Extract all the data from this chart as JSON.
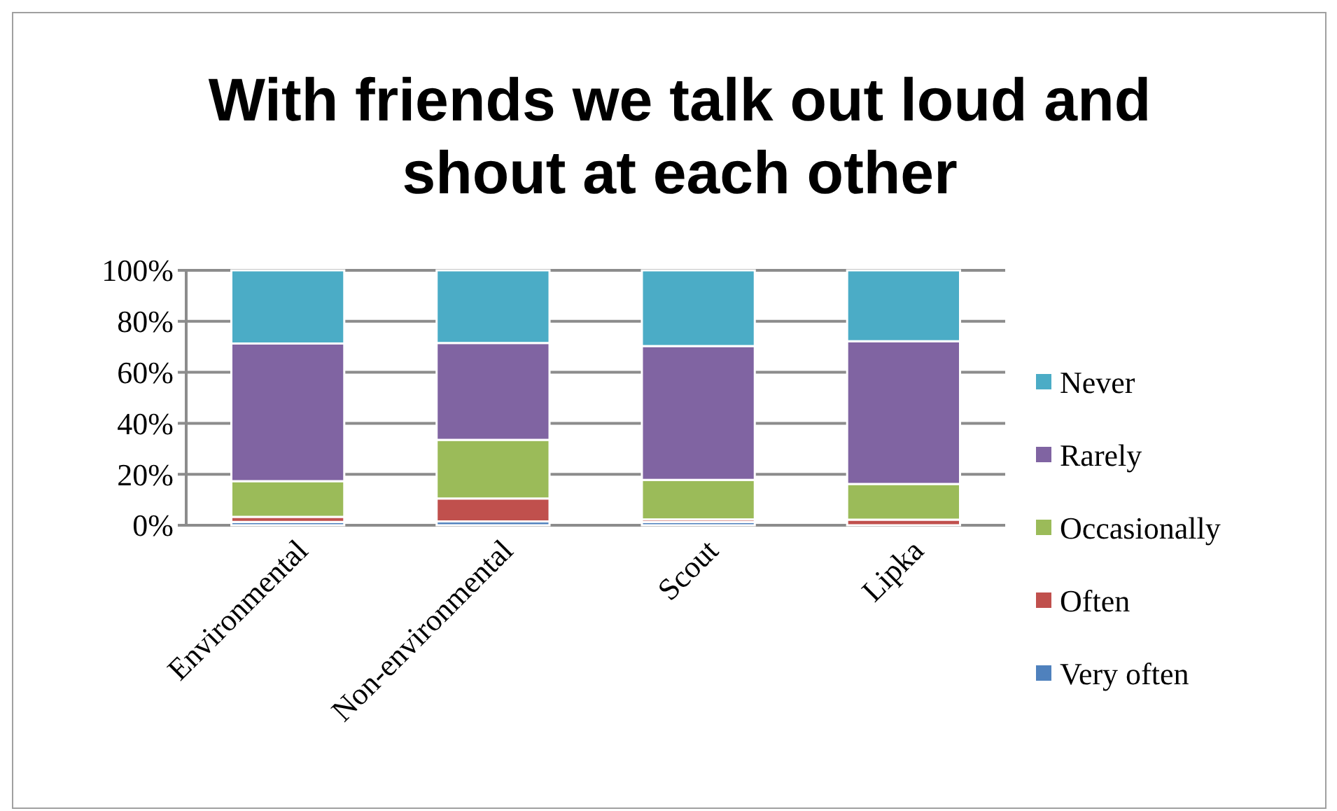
{
  "chart_data": {
    "type": "bar",
    "stacked": true,
    "title": "With friends we talk out loud and shout at each other",
    "categories": [
      "Environmental",
      "Non-environmental",
      "Scout",
      "Lipka"
    ],
    "series": [
      {
        "name": "Very often",
        "color": "#4f81bd",
        "values": [
          1.3,
          1.5,
          1.3,
          0
        ]
      },
      {
        "name": "Often",
        "color": "#c0504d",
        "values": [
          2,
          9,
          1,
          2.2
        ]
      },
      {
        "name": "Occasionally",
        "color": "#9bbb59",
        "values": [
          14,
          23,
          15.5,
          14
        ]
      },
      {
        "name": "Rarely",
        "color": "#8064a2",
        "values": [
          54,
          38,
          52.5,
          56
        ]
      },
      {
        "name": "Never",
        "color": "#4bacc6",
        "values": [
          28.7,
          28.5,
          29.7,
          27.8
        ]
      }
    ],
    "ylim": [
      0,
      100
    ],
    "yticks": [
      {
        "value": 0,
        "label": "0%"
      },
      {
        "value": 20,
        "label": "20%"
      },
      {
        "value": 40,
        "label": "40%"
      },
      {
        "value": 60,
        "label": "60%"
      },
      {
        "value": 80,
        "label": "80%"
      },
      {
        "value": 100,
        "label": "100%"
      }
    ],
    "grid": "y",
    "legend": "right"
  }
}
